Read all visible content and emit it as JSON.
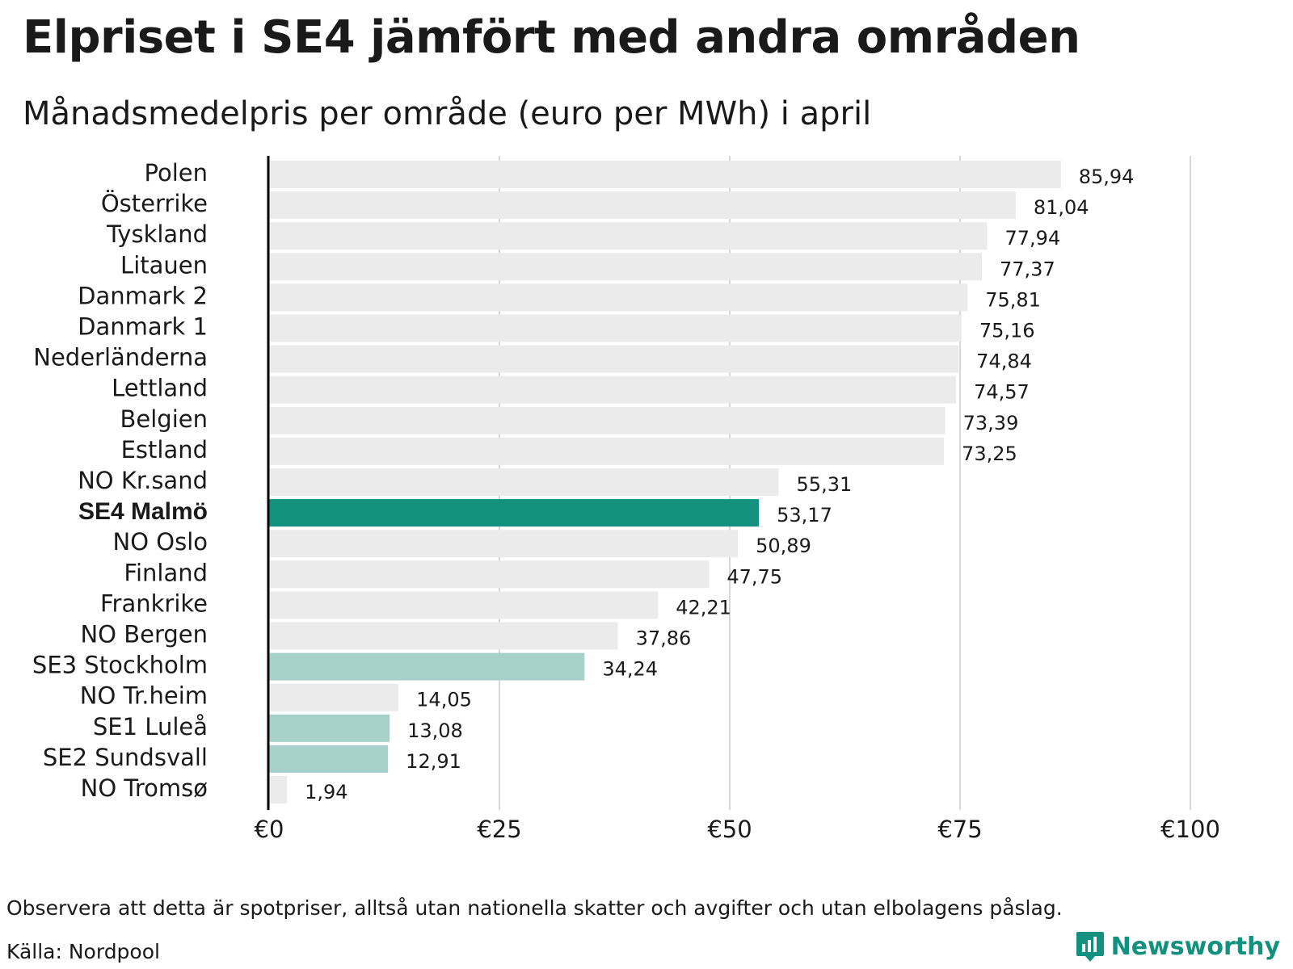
{
  "title": "Elpriset i SE4 jämfört med andra områden",
  "subtitle": "Månadsmedelpris per område (euro per MWh) i april",
  "note": "Observera att detta är spotpriser, alltså utan nationella skatter och avgifter och utan elbolagens påslag.",
  "source": "Källa: Nordpool",
  "brand": {
    "name": "Newsworthy",
    "icon": "newsworthy-logo-icon",
    "color": "#13917f"
  },
  "colors": {
    "default_bar": "#ebebeb",
    "highlight_bar": "#13917f",
    "swedish_bar": "#a6d1cb",
    "grid": "#c8c8d0",
    "axis": "#000000"
  },
  "chart_data": {
    "type": "bar",
    "orientation": "horizontal",
    "title": "Elpriset i SE4 jämfört med andra områden",
    "subtitle": "Månadsmedelpris per område (euro per MWh) i april",
    "xlim": [
      0,
      100
    ],
    "x_ticks": [
      0,
      25,
      50,
      75,
      100
    ],
    "x_tick_labels": [
      "€0",
      "€25",
      "€50",
      "€75",
      "€100"
    ],
    "grid": true,
    "categories": [
      "Polen",
      "Österrike",
      "Tyskland",
      "Litauen",
      "Danmark  2",
      "Danmark  1",
      "Nederländerna",
      "Lettland",
      "Belgien",
      "Estland",
      "NO Kr.sand",
      "SE4 Malmö",
      "NO Oslo",
      "Finland",
      "Frankrike",
      "NO Bergen",
      "SE3  Stockholm",
      "NO Tr.heim",
      "SE1  Luleå",
      "SE2  Sundsvall",
      "NO Tromsø"
    ],
    "values": [
      85.94,
      81.04,
      77.94,
      77.37,
      75.81,
      75.16,
      74.84,
      74.57,
      73.39,
      73.25,
      55.31,
      53.17,
      50.89,
      47.75,
      42.21,
      37.86,
      34.24,
      14.05,
      13.08,
      12.91,
      1.94
    ],
    "value_labels": [
      "85,94",
      "81,04",
      "77,94",
      "77,37",
      "75,81",
      "75,16",
      "74,84",
      "74,57",
      "73,39",
      "73,25",
      "55,31",
      "53,17",
      "50,89",
      "47,75",
      "42,21",
      "37,86",
      "34,24",
      "14,05",
      "13,08",
      "12,91",
      "1,94"
    ],
    "highlight": [
      "default",
      "default",
      "default",
      "default",
      "default",
      "default",
      "default",
      "default",
      "default",
      "default",
      "default",
      "primary",
      "default",
      "default",
      "default",
      "default",
      "secondary",
      "default",
      "secondary",
      "secondary",
      "default"
    ]
  }
}
